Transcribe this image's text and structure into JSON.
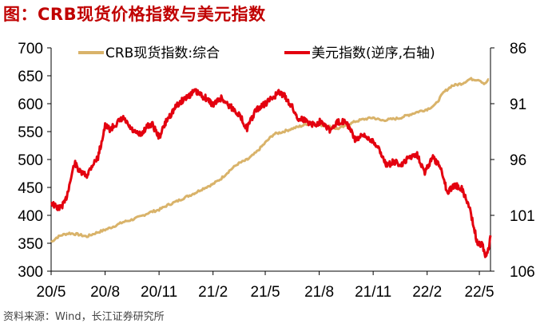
{
  "title": "图：CRB现货价格指数与美元指数",
  "source": "资料来源：Wind，长江证券研究所",
  "colors": {
    "crb": "#D9B36A",
    "usd": "#E3000F",
    "title": "#C00000"
  },
  "chart_data": {
    "type": "line",
    "title": "图：CRB现货价格指数与美元指数",
    "legend_position": "top",
    "grid": false,
    "x_tick_labels": [
      "20/5",
      "20/8",
      "20/11",
      "21/2",
      "21/5",
      "21/8",
      "21/11",
      "22/2",
      "22/5"
    ],
    "x_ticks": [
      "2020-05-01",
      "2020-08-01",
      "2020-11-01",
      "2021-02-01",
      "2021-05-01",
      "2021-08-01",
      "2021-11-01",
      "2022-02-01",
      "2022-05-01"
    ],
    "xlim": [
      "2020-05-01",
      "2022-05-20"
    ],
    "y_left": {
      "ticks": [
        300,
        350,
        400,
        450,
        500,
        550,
        600,
        650,
        700
      ],
      "ylim": [
        300,
        700
      ]
    },
    "y_right": {
      "ticks": [
        86,
        91,
        96,
        101,
        106
      ],
      "ylim": [
        86,
        106
      ],
      "inverted": true
    },
    "series": [
      {
        "name": "CRB现货指数:综合",
        "axis": "left",
        "points": [
          [
            "2020-05-01",
            352
          ],
          [
            "2020-05-10",
            360
          ],
          [
            "2020-05-20",
            365
          ],
          [
            "2020-06-01",
            368
          ],
          [
            "2020-06-15",
            366
          ],
          [
            "2020-07-01",
            362
          ],
          [
            "2020-07-15",
            368
          ],
          [
            "2020-08-01",
            374
          ],
          [
            "2020-08-15",
            380
          ],
          [
            "2020-09-01",
            388
          ],
          [
            "2020-09-15",
            392
          ],
          [
            "2020-10-01",
            398
          ],
          [
            "2020-10-15",
            405
          ],
          [
            "2020-11-01",
            410
          ],
          [
            "2020-11-15",
            418
          ],
          [
            "2020-12-01",
            425
          ],
          [
            "2020-12-15",
            432
          ],
          [
            "2021-01-01",
            440
          ],
          [
            "2021-01-15",
            448
          ],
          [
            "2021-02-01",
            456
          ],
          [
            "2021-02-15",
            466
          ],
          [
            "2021-03-01",
            480
          ],
          [
            "2021-03-15",
            492
          ],
          [
            "2021-04-01",
            500
          ],
          [
            "2021-04-15",
            512
          ],
          [
            "2021-05-01",
            530
          ],
          [
            "2021-05-15",
            545
          ],
          [
            "2021-06-01",
            550
          ],
          [
            "2021-06-15",
            555
          ],
          [
            "2021-07-01",
            560
          ],
          [
            "2021-07-15",
            565
          ],
          [
            "2021-08-01",
            562
          ],
          [
            "2021-08-15",
            560
          ],
          [
            "2021-09-01",
            555
          ],
          [
            "2021-09-15",
            560
          ],
          [
            "2021-10-01",
            568
          ],
          [
            "2021-10-15",
            572
          ],
          [
            "2021-11-01",
            575
          ],
          [
            "2021-11-15",
            570
          ],
          [
            "2021-12-01",
            572
          ],
          [
            "2021-12-15",
            574
          ],
          [
            "2022-01-01",
            580
          ],
          [
            "2022-01-15",
            585
          ],
          [
            "2022-02-01",
            590
          ],
          [
            "2022-02-15",
            598
          ],
          [
            "2022-03-01",
            620
          ],
          [
            "2022-03-15",
            632
          ],
          [
            "2022-04-01",
            636
          ],
          [
            "2022-04-15",
            644
          ],
          [
            "2022-05-01",
            643
          ],
          [
            "2022-05-10",
            635
          ],
          [
            "2022-05-17",
            643
          ]
        ]
      },
      {
        "name": "美元指数(逆序,右轴)",
        "axis": "right",
        "points": [
          [
            "2020-05-01",
            99.8
          ],
          [
            "2020-05-08",
            100.2
          ],
          [
            "2020-05-15",
            100.4
          ],
          [
            "2020-05-25",
            99.8
          ],
          [
            "2020-06-01",
            98.3
          ],
          [
            "2020-06-10",
            96.3
          ],
          [
            "2020-06-20",
            97.2
          ],
          [
            "2020-07-01",
            97.4
          ],
          [
            "2020-07-10",
            96.5
          ],
          [
            "2020-07-20",
            95.8
          ],
          [
            "2020-08-01",
            93.0
          ],
          [
            "2020-08-10",
            93.3
          ],
          [
            "2020-08-20",
            92.8
          ],
          [
            "2020-09-01",
            92.3
          ],
          [
            "2020-09-10",
            93.0
          ],
          [
            "2020-09-20",
            93.6
          ],
          [
            "2020-10-01",
            93.8
          ],
          [
            "2020-10-10",
            93.1
          ],
          [
            "2020-10-20",
            92.8
          ],
          [
            "2020-11-01",
            94.0
          ],
          [
            "2020-11-15",
            92.4
          ],
          [
            "2020-12-01",
            91.2
          ],
          [
            "2020-12-15",
            90.5
          ],
          [
            "2021-01-01",
            89.9
          ],
          [
            "2021-01-10",
            90.2
          ],
          [
            "2021-01-20",
            90.5
          ],
          [
            "2021-02-01",
            91.1
          ],
          [
            "2021-02-15",
            90.5
          ],
          [
            "2021-03-01",
            91.2
          ],
          [
            "2021-03-15",
            91.8
          ],
          [
            "2021-03-31",
            93.2
          ],
          [
            "2021-04-15",
            91.6
          ],
          [
            "2021-05-01",
            91.0
          ],
          [
            "2021-05-15",
            90.4
          ],
          [
            "2021-05-25",
            90.0
          ],
          [
            "2021-06-01",
            90.2
          ],
          [
            "2021-06-15",
            91.2
          ],
          [
            "2021-06-25",
            92.3
          ],
          [
            "2021-07-01",
            92.3
          ],
          [
            "2021-07-15",
            92.7
          ],
          [
            "2021-07-25",
            92.9
          ],
          [
            "2021-08-05",
            92.5
          ],
          [
            "2021-08-20",
            93.4
          ],
          [
            "2021-09-01",
            92.7
          ],
          [
            "2021-09-15",
            92.5
          ],
          [
            "2021-10-01",
            94.2
          ],
          [
            "2021-10-15",
            93.9
          ],
          [
            "2021-11-01",
            94.3
          ],
          [
            "2021-11-12",
            95.2
          ],
          [
            "2021-11-25",
            96.6
          ],
          [
            "2021-12-05",
            96.2
          ],
          [
            "2021-12-20",
            96.5
          ],
          [
            "2022-01-01",
            95.8
          ],
          [
            "2022-01-15",
            95.5
          ],
          [
            "2022-01-28",
            97.2
          ],
          [
            "2022-02-10",
            95.8
          ],
          [
            "2022-02-25",
            96.8
          ],
          [
            "2022-03-07",
            98.9
          ],
          [
            "2022-03-20",
            98.3
          ],
          [
            "2022-04-01",
            98.6
          ],
          [
            "2022-04-15",
            100.4
          ],
          [
            "2022-04-28",
            103.6
          ],
          [
            "2022-05-06",
            103.6
          ],
          [
            "2022-05-12",
            104.8
          ],
          [
            "2022-05-17",
            103.9
          ],
          [
            "2022-05-20",
            102.8
          ]
        ]
      }
    ]
  }
}
